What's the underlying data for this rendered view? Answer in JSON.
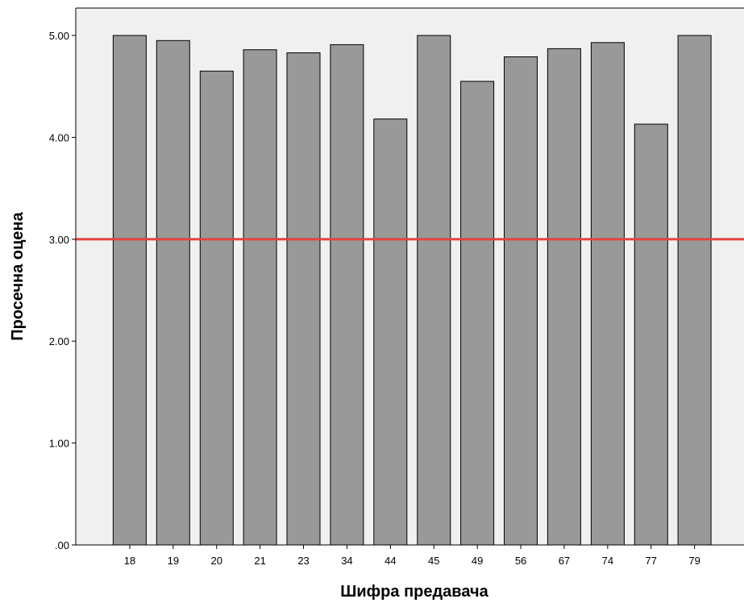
{
  "chart_data": {
    "type": "bar",
    "xlabel": "Шифра предавача",
    "ylabel": "Просечна оцена",
    "categories": [
      "18",
      "19",
      "20",
      "21",
      "23",
      "34",
      "44",
      "45",
      "49",
      "56",
      "67",
      "74",
      "77",
      "79"
    ],
    "values": [
      5.0,
      4.95,
      4.65,
      4.86,
      4.83,
      4.91,
      4.18,
      5.0,
      4.55,
      4.79,
      4.87,
      4.93,
      4.13,
      5.0
    ],
    "ylim": [
      0,
      5.25
    ],
    "yticks": [
      0,
      1,
      2,
      3,
      4,
      5
    ],
    "ytick_labels": [
      ".00",
      "1.00",
      "2.00",
      "3.00",
      "4.00",
      "5.00"
    ],
    "reference_line": 3.0,
    "grid": false,
    "colors": {
      "plot_background": "#f0f0f0",
      "bar_fill": "#999999",
      "bar_stroke": "#000000",
      "reference_line": "#e8423f"
    }
  }
}
